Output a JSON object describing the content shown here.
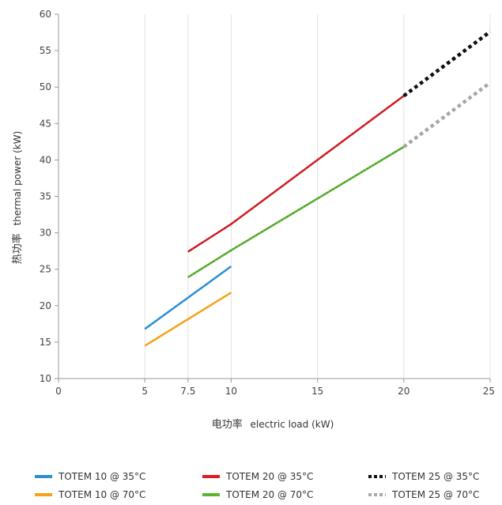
{
  "chart_data": {
    "type": "line",
    "title": "",
    "xlabel_cn": "电功率",
    "xlabel": "electric load (kW)",
    "ylabel_cn": "热功率",
    "ylabel": "thermal power (kW)",
    "xlim": [
      0,
      25
    ],
    "ylim": [
      10,
      60
    ],
    "x_ticks": [
      0,
      5,
      7.5,
      10,
      15,
      20,
      25
    ],
    "x_tick_labels": [
      "0",
      "5",
      "7.5",
      "10",
      "15",
      "20",
      "25"
    ],
    "y_ticks": [
      10,
      15,
      20,
      25,
      30,
      35,
      40,
      45,
      50,
      55,
      60
    ],
    "y_tick_labels": [
      "10",
      "15",
      "20",
      "25",
      "30",
      "35",
      "40",
      "45",
      "50",
      "55",
      "60"
    ],
    "grid": "vertical",
    "legend_position": "bottom",
    "series": [
      {
        "name": "TOTEM 10 @ 35°C",
        "color": "#2b8fd6",
        "style": "solid",
        "x": [
          5,
          10
        ],
        "y": [
          16.8,
          25.4
        ]
      },
      {
        "name": "TOTEM 10 @ 70°C",
        "color": "#f5a21b",
        "style": "solid",
        "x": [
          5,
          10
        ],
        "y": [
          14.5,
          21.8
        ]
      },
      {
        "name": "TOTEM 20 @ 35°C",
        "color": "#d81f26",
        "style": "solid",
        "x": [
          7.5,
          10,
          20
        ],
        "y": [
          27.4,
          31.2,
          48.8
        ]
      },
      {
        "name": "TOTEM 20 @ 70°C",
        "color": "#5cb531",
        "style": "solid",
        "x": [
          7.5,
          10,
          20
        ],
        "y": [
          23.9,
          27.6,
          41.8
        ]
      },
      {
        "name": "TOTEM 25 @ 35°C",
        "color": "#111111",
        "style": "dotted",
        "x": [
          20,
          25
        ],
        "y": [
          48.8,
          57.6
        ]
      },
      {
        "name": "TOTEM 25 @ 70°C",
        "color": "#a8a8a8",
        "style": "dotted",
        "x": [
          20,
          25
        ],
        "y": [
          41.8,
          50.6
        ]
      }
    ]
  },
  "legend": {
    "items": [
      {
        "label": "TOTEM 10 @ 35°C",
        "color": "#2b8fd6",
        "style": "solid"
      },
      {
        "label": "TOTEM 20 @ 35°C",
        "color": "#d81f26",
        "style": "solid"
      },
      {
        "label": "TOTEM 25 @ 35°C",
        "color": "#111111",
        "style": "dotted"
      },
      {
        "label": "TOTEM 10 @ 70°C",
        "color": "#f5a21b",
        "style": "solid"
      },
      {
        "label": "TOTEM 20 @ 70°C",
        "color": "#5cb531",
        "style": "solid"
      },
      {
        "label": "TOTEM 25 @ 70°C",
        "color": "#a8a8a8",
        "style": "dotted"
      }
    ]
  }
}
